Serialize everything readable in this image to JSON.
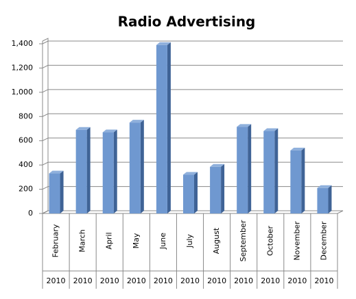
{
  "chart_data": {
    "type": "bar",
    "title": "Radio Advertising",
    "categories": [
      "February",
      "March",
      "April",
      "May",
      "June",
      "July",
      "August",
      "September",
      "October",
      "November",
      "December"
    ],
    "category_years": [
      "2010",
      "2010",
      "2010",
      "2010",
      "2010",
      "2010",
      "2010",
      "2010",
      "2010",
      "2010",
      "2010"
    ],
    "values": [
      330,
      690,
      670,
      750,
      1390,
      320,
      385,
      715,
      680,
      520,
      210
    ],
    "color": "#6f98d0",
    "ylim": [
      0,
      1400
    ],
    "yticks": [
      0,
      200,
      400,
      600,
      800,
      {
        "value": 1000,
        "label": "1,000"
      },
      {
        "value": 1200,
        "label": "1,200"
      },
      {
        "value": 1400,
        "label": "1,400"
      }
    ],
    "grid": true
  }
}
